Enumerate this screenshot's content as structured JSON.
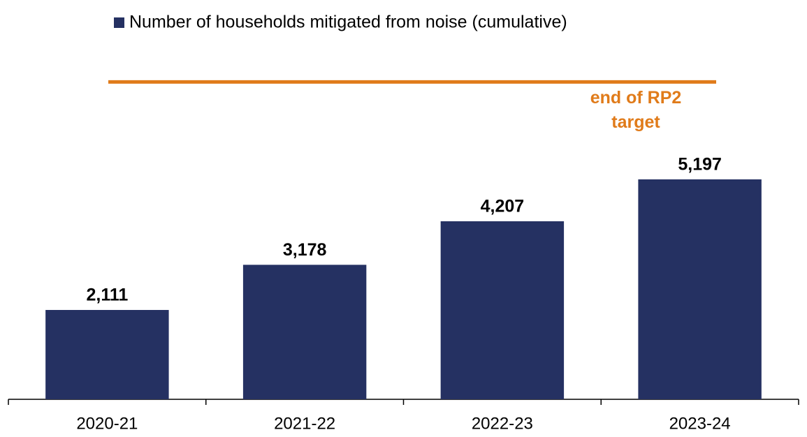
{
  "chart_data": {
    "type": "bar",
    "legend": "Number of households mitigated from noise (cumulative)",
    "categories": [
      "2020-21",
      "2021-22",
      "2022-23",
      "2023-24"
    ],
    "values": [
      2111,
      3178,
      4207,
      5197
    ],
    "value_labels": [
      "2,111",
      "3,178",
      "4,207",
      "5,197"
    ],
    "color": "#253162",
    "ylim": [
      0,
      8000
    ],
    "target": {
      "label": [
        "end of RP2",
        "target"
      ],
      "value": 7500,
      "color": "#e07b1a"
    }
  }
}
